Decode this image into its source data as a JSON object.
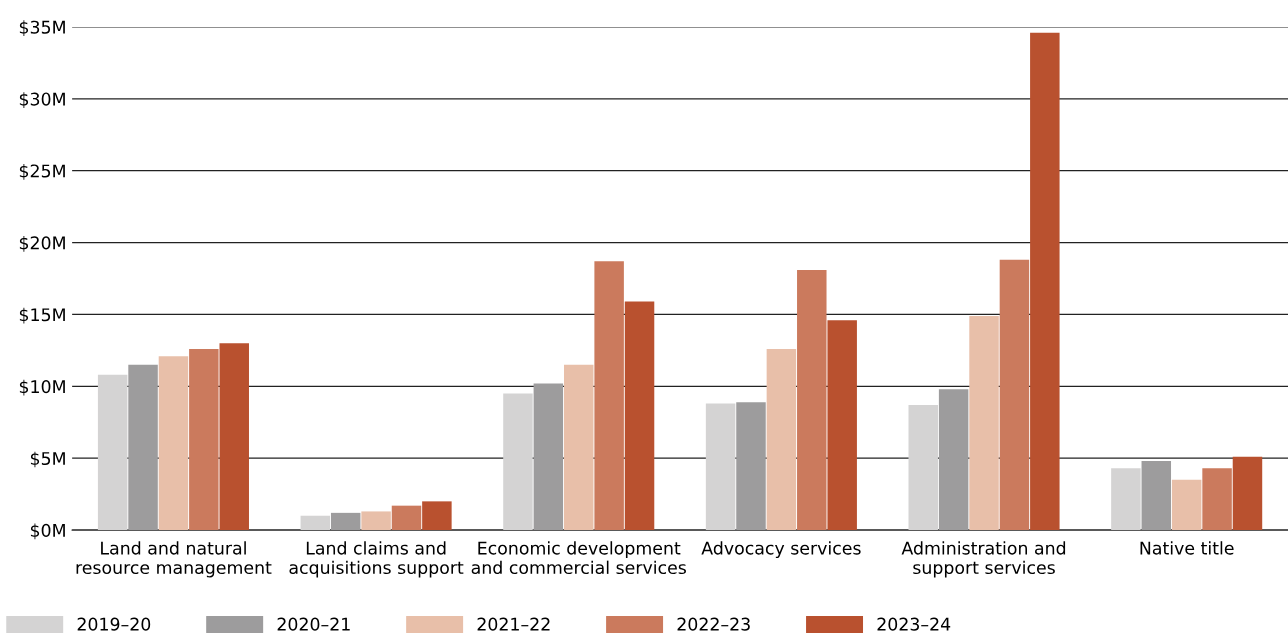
{
  "chart_data": {
    "type": "bar",
    "categories": [
      "Land and natural\nresource management",
      "Land claims and\nacquisitions support",
      "Economic development\nand commercial services",
      "Advocacy services",
      "Administration and\nsupport services",
      "Native title"
    ],
    "series": [
      {
        "name": "2019–20",
        "color": "#d4d3d3",
        "values": [
          10.8,
          1.0,
          9.5,
          8.8,
          8.7,
          4.3
        ]
      },
      {
        "name": "2020–21",
        "color": "#9d9c9d",
        "values": [
          11.5,
          1.2,
          10.2,
          8.9,
          9.8,
          4.8
        ]
      },
      {
        "name": "2021–22",
        "color": "#e8bfa9",
        "values": [
          12.1,
          1.3,
          11.5,
          12.6,
          14.9,
          3.5
        ]
      },
      {
        "name": "2022–23",
        "color": "#cb7a5d",
        "values": [
          12.6,
          1.7,
          18.7,
          18.1,
          18.8,
          4.3
        ]
      },
      {
        "name": "2023–24",
        "color": "#b9512f",
        "values": [
          13.0,
          2.0,
          15.9,
          14.6,
          34.6,
          5.1
        ]
      }
    ],
    "ylim": [
      0,
      35
    ],
    "yticks": [
      {
        "value": 0,
        "label": "$0M"
      },
      {
        "value": 5,
        "label": "$5M"
      },
      {
        "value": 10,
        "label": "$10M"
      },
      {
        "value": 15,
        "label": "$15M"
      },
      {
        "value": 20,
        "label": "$20M"
      },
      {
        "value": 25,
        "label": "$25M"
      },
      {
        "value": 30,
        "label": "$30M"
      },
      {
        "value": 35,
        "label": "$35M"
      }
    ],
    "grid": "y",
    "legend": "bottom"
  }
}
